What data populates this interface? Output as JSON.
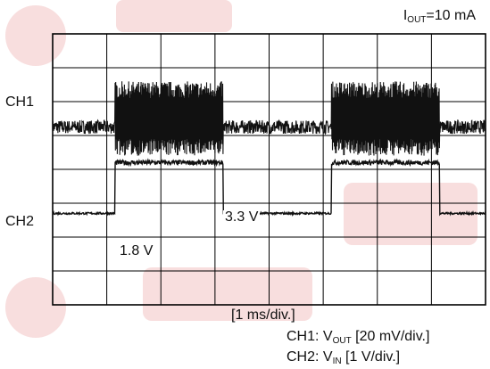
{
  "header": {
    "condition_prefix": "I",
    "condition_sub": "OUT",
    "condition_suffix": "=10 mA"
  },
  "chart_data": {
    "type": "line",
    "title": "",
    "xlabel": "[1 ms/div.]",
    "grid": true,
    "divisions": {
      "x": 8,
      "y": 8
    },
    "x_unit": "ms",
    "x_range_div": [
      0,
      8
    ],
    "ch1": {
      "label": "CH1",
      "scale_prefix": "CH1: V",
      "scale_sub": "OUT",
      "scale_suffix": " [20 mV/div.]",
      "baseline_div": 5.25,
      "quiet_noise_div": 0.4,
      "burst_amplitude_div": 2.2,
      "burst_intervals_ms": [
        [
          1.15,
          3.15
        ],
        [
          5.15,
          7.15
        ]
      ],
      "color": "#111111"
    },
    "ch2": {
      "label": "CH2",
      "scale_prefix": "CH2: V",
      "scale_sub": "IN",
      "scale_suffix": " [1 V/div.]",
      "low_label": "1.8 V",
      "high_label": "3.3 V",
      "low_level_div": 2.7,
      "high_level_div": 4.2,
      "waveform": [
        {
          "t_ms": 0.0,
          "level": "low"
        },
        {
          "t_ms": 1.15,
          "level": "high"
        },
        {
          "t_ms": 3.15,
          "level": "low"
        },
        {
          "t_ms": 5.15,
          "level": "high"
        },
        {
          "t_ms": 7.15,
          "level": "low"
        }
      ],
      "color": "#111111"
    }
  }
}
